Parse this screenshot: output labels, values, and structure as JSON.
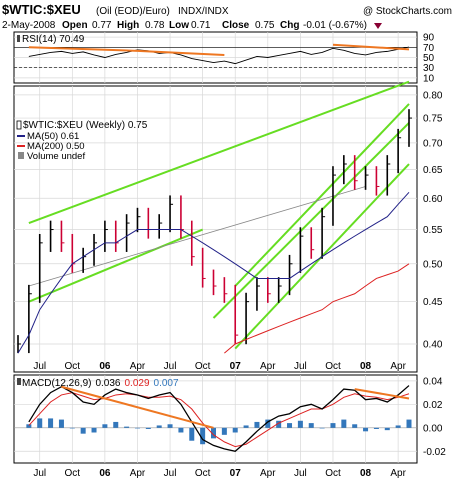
{
  "header": {
    "symbol": "$WTIC:$XEU",
    "description": "(Oil (EOD)/Euro)",
    "exchange": "INDX/INDX",
    "watermark": "@ StockCharts.com",
    "date": "2-May-2008",
    "open_label": "Open",
    "open": "0.77",
    "high_label": "High",
    "high": "0.78",
    "low_label": "Low",
    "low": "0.71",
    "close_label": "Close",
    "close": "0.75",
    "chg_label": "Chg",
    "chg": "-0.01 (-0.67%)",
    "chg_icon": "down-triangle-icon"
  },
  "colors": {
    "trend_green": "#66dd22",
    "trend_orange": "#ee7722",
    "up_bar": "#000000",
    "down_bar": "#cc0033",
    "ma50": "#222288",
    "ma200": "#dd2222",
    "macd_hist": "#3377bb",
    "signal": "#dd2222",
    "gray_line": "#888888",
    "grid": "#d8d8d8"
  },
  "chart_data": [
    {
      "type": "line",
      "panel": "rsi",
      "title": "RSI(14) 70.49",
      "ylim": [
        0,
        100
      ],
      "y_ticks": [
        "90",
        "70",
        "50",
        "30",
        "10"
      ],
      "reference_lines": [
        70,
        30
      ],
      "x": [
        "2005-06",
        "2005-07",
        "2005-08",
        "2005-09",
        "2005-10",
        "2005-11",
        "2005-12",
        "2006-01",
        "2006-02",
        "2006-03",
        "2006-04",
        "2006-05",
        "2006-06",
        "2006-07",
        "2006-08",
        "2006-09",
        "2006-10",
        "2006-11",
        "2006-12",
        "2007-01",
        "2007-02",
        "2007-03",
        "2007-04",
        "2007-05",
        "2007-06",
        "2007-07",
        "2007-08",
        "2007-09",
        "2007-10",
        "2007-11",
        "2007-12",
        "2008-01",
        "2008-02",
        "2008-03",
        "2008-04",
        "2008-05"
      ],
      "series": [
        {
          "values": [
            52,
            56,
            60,
            62,
            58,
            61,
            55,
            50,
            56,
            60,
            65,
            63,
            58,
            60,
            55,
            48,
            44,
            40,
            43,
            38,
            45,
            52,
            50,
            54,
            58,
            62,
            56,
            60,
            68,
            64,
            58,
            55,
            60,
            62,
            66,
            70.49
          ]
        }
      ],
      "trendlines": [
        {
          "from": [
            "2005-06",
            70
          ],
          "to": [
            "2006-04",
            63
          ]
        },
        {
          "from": [
            "2006-04",
            63
          ],
          "to": [
            "2006-12",
            55
          ]
        },
        {
          "from": [
            "2007-10",
            75
          ],
          "to": [
            "2008-05",
            66
          ]
        }
      ]
    },
    {
      "type": "line",
      "panel": "price",
      "title": "$WTIC:$XEU (Weekly) 0.75",
      "legend": [
        {
          "label": "MA(50) 0.61",
          "color": "#222288"
        },
        {
          "label": "MA(200) 0.50",
          "color": "#dd2222"
        },
        {
          "label": "Volume undef",
          "color": "#666666"
        }
      ],
      "y_ticks": [
        "0.40",
        "0.45",
        "0.50",
        "0.55",
        "0.60",
        "0.65",
        "0.70",
        "0.75",
        "0.80"
      ],
      "ylim": [
        0.37,
        0.82
      ],
      "x_ticks": [
        "Jul",
        "Oct",
        "06",
        "Apr",
        "Jul",
        "Oct",
        "07",
        "Apr",
        "Jul",
        "Oct",
        "08",
        "Apr"
      ],
      "x": [
        "2005-05",
        "2005-06",
        "2005-07",
        "2005-08",
        "2005-09",
        "2005-10",
        "2005-11",
        "2005-12",
        "2006-01",
        "2006-02",
        "2006-03",
        "2006-04",
        "2006-05",
        "2006-06",
        "2006-07",
        "2006-08",
        "2006-09",
        "2006-10",
        "2006-11",
        "2006-12",
        "2007-01",
        "2007-02",
        "2007-03",
        "2007-04",
        "2007-05",
        "2007-06",
        "2007-07",
        "2007-08",
        "2007-09",
        "2007-10",
        "2007-11",
        "2007-12",
        "2008-01",
        "2008-02",
        "2008-03",
        "2008-04",
        "2008-05"
      ],
      "series": [
        {
          "name": "$WTIC:$XEU",
          "values": [
            0.4,
            0.46,
            0.53,
            0.55,
            0.53,
            0.5,
            0.51,
            0.53,
            0.55,
            0.53,
            0.56,
            0.57,
            0.55,
            0.56,
            0.59,
            0.55,
            0.51,
            0.48,
            0.47,
            0.46,
            0.41,
            0.45,
            0.47,
            0.46,
            0.47,
            0.5,
            0.54,
            0.52,
            0.57,
            0.64,
            0.66,
            0.63,
            0.64,
            0.62,
            0.66,
            0.71,
            0.75
          ]
        },
        {
          "name": "MA(50)",
          "values": [
            0.39,
            0.41,
            0.44,
            0.46,
            0.48,
            0.5,
            0.51,
            0.52,
            0.53,
            0.53,
            0.54,
            0.55,
            0.55,
            0.55,
            0.55,
            0.55,
            0.54,
            0.53,
            0.52,
            0.51,
            0.5,
            0.49,
            0.48,
            0.48,
            0.48,
            0.48,
            0.49,
            0.5,
            0.51,
            0.52,
            0.53,
            0.54,
            0.55,
            0.56,
            0.57,
            0.59,
            0.61
          ]
        },
        {
          "name": "MA(200)",
          "values": [
            null,
            null,
            null,
            null,
            null,
            null,
            null,
            null,
            null,
            null,
            null,
            null,
            null,
            null,
            null,
            null,
            null,
            null,
            null,
            0.39,
            0.4,
            0.405,
            0.41,
            0.415,
            0.42,
            0.425,
            0.43,
            0.435,
            0.44,
            0.45,
            0.455,
            0.46,
            0.47,
            0.48,
            0.485,
            0.49,
            0.5
          ]
        }
      ],
      "trendlines": [
        {
          "from": [
            "2005-06",
            0.56
          ],
          "to": [
            "2008-05",
            0.83
          ]
        },
        {
          "from": [
            "2005-06",
            0.45
          ],
          "to": [
            "2006-10",
            0.55
          ]
        },
        {
          "from": [
            "2006-11",
            0.43
          ],
          "to": [
            "2008-05",
            0.74
          ]
        },
        {
          "from": [
            "2007-01",
            0.395
          ],
          "to": [
            "2008-05",
            0.66
          ]
        },
        {
          "from": [
            "2007-01",
            0.47
          ],
          "to": [
            "2008-05",
            0.78
          ]
        },
        {
          "from": [
            "2005-06",
            0.47
          ],
          "to": [
            "2008-01",
            0.62
          ],
          "style": "gray"
        }
      ]
    },
    {
      "type": "line",
      "panel": "macd",
      "title_parts": [
        "MACD(12,26,9)",
        "0.036",
        "0.029",
        "0.007"
      ],
      "y_ticks": [
        "0.04",
        "0.02",
        "0.00",
        "-0.02"
      ],
      "ylim": [
        -0.03,
        0.045
      ],
      "x": [
        "2005-06",
        "2005-07",
        "2005-08",
        "2005-09",
        "2005-10",
        "2005-11",
        "2005-12",
        "2006-01",
        "2006-02",
        "2006-03",
        "2006-04",
        "2006-05",
        "2006-06",
        "2006-07",
        "2006-08",
        "2006-09",
        "2006-10",
        "2006-11",
        "2006-12",
        "2007-01",
        "2007-02",
        "2007-03",
        "2007-04",
        "2007-05",
        "2007-06",
        "2007-07",
        "2007-08",
        "2007-09",
        "2007-10",
        "2007-11",
        "2007-12",
        "2008-01",
        "2008-02",
        "2008-03",
        "2008-04",
        "2008-05"
      ],
      "series": [
        {
          "name": "MACD",
          "values": [
            0.005,
            0.02,
            0.03,
            0.035,
            0.03,
            0.022,
            0.02,
            0.028,
            0.033,
            0.03,
            0.028,
            0.025,
            0.028,
            0.03,
            0.02,
            0.005,
            -0.01,
            -0.015,
            -0.018,
            -0.02,
            -0.012,
            -0.003,
            0.005,
            0.01,
            0.012,
            0.018,
            0.02,
            0.016,
            0.024,
            0.033,
            0.032,
            0.024,
            0.025,
            0.022,
            0.028,
            0.036
          ]
        },
        {
          "name": "Signal",
          "values": [
            0.002,
            0.012,
            0.022,
            0.028,
            0.03,
            0.027,
            0.024,
            0.025,
            0.028,
            0.029,
            0.028,
            0.026,
            0.026,
            0.027,
            0.024,
            0.016,
            0.004,
            -0.006,
            -0.012,
            -0.016,
            -0.014,
            -0.008,
            -0.002,
            0.004,
            0.008,
            0.012,
            0.016,
            0.016,
            0.02,
            0.026,
            0.029,
            0.027,
            0.026,
            0.024,
            0.026,
            0.029
          ]
        }
      ],
      "histogram": [
        0.003,
        0.008,
        0.008,
        0.007,
        0.0,
        -0.005,
        -0.004,
        0.003,
        0.005,
        0.001,
        0.0,
        -0.001,
        0.002,
        0.003,
        -0.004,
        -0.011,
        -0.014,
        -0.009,
        -0.006,
        -0.004,
        0.002,
        0.005,
        0.007,
        0.006,
        0.004,
        0.006,
        0.004,
        0.0,
        0.004,
        0.007,
        0.003,
        -0.003,
        -0.001,
        -0.002,
        0.002,
        0.007
      ],
      "trendlines": [
        {
          "from": [
            "2005-09",
            0.035
          ],
          "to": [
            "2006-11",
            0.0
          ]
        },
        {
          "from": [
            "2007-12",
            0.033
          ],
          "to": [
            "2008-05",
            0.025
          ]
        }
      ]
    }
  ]
}
